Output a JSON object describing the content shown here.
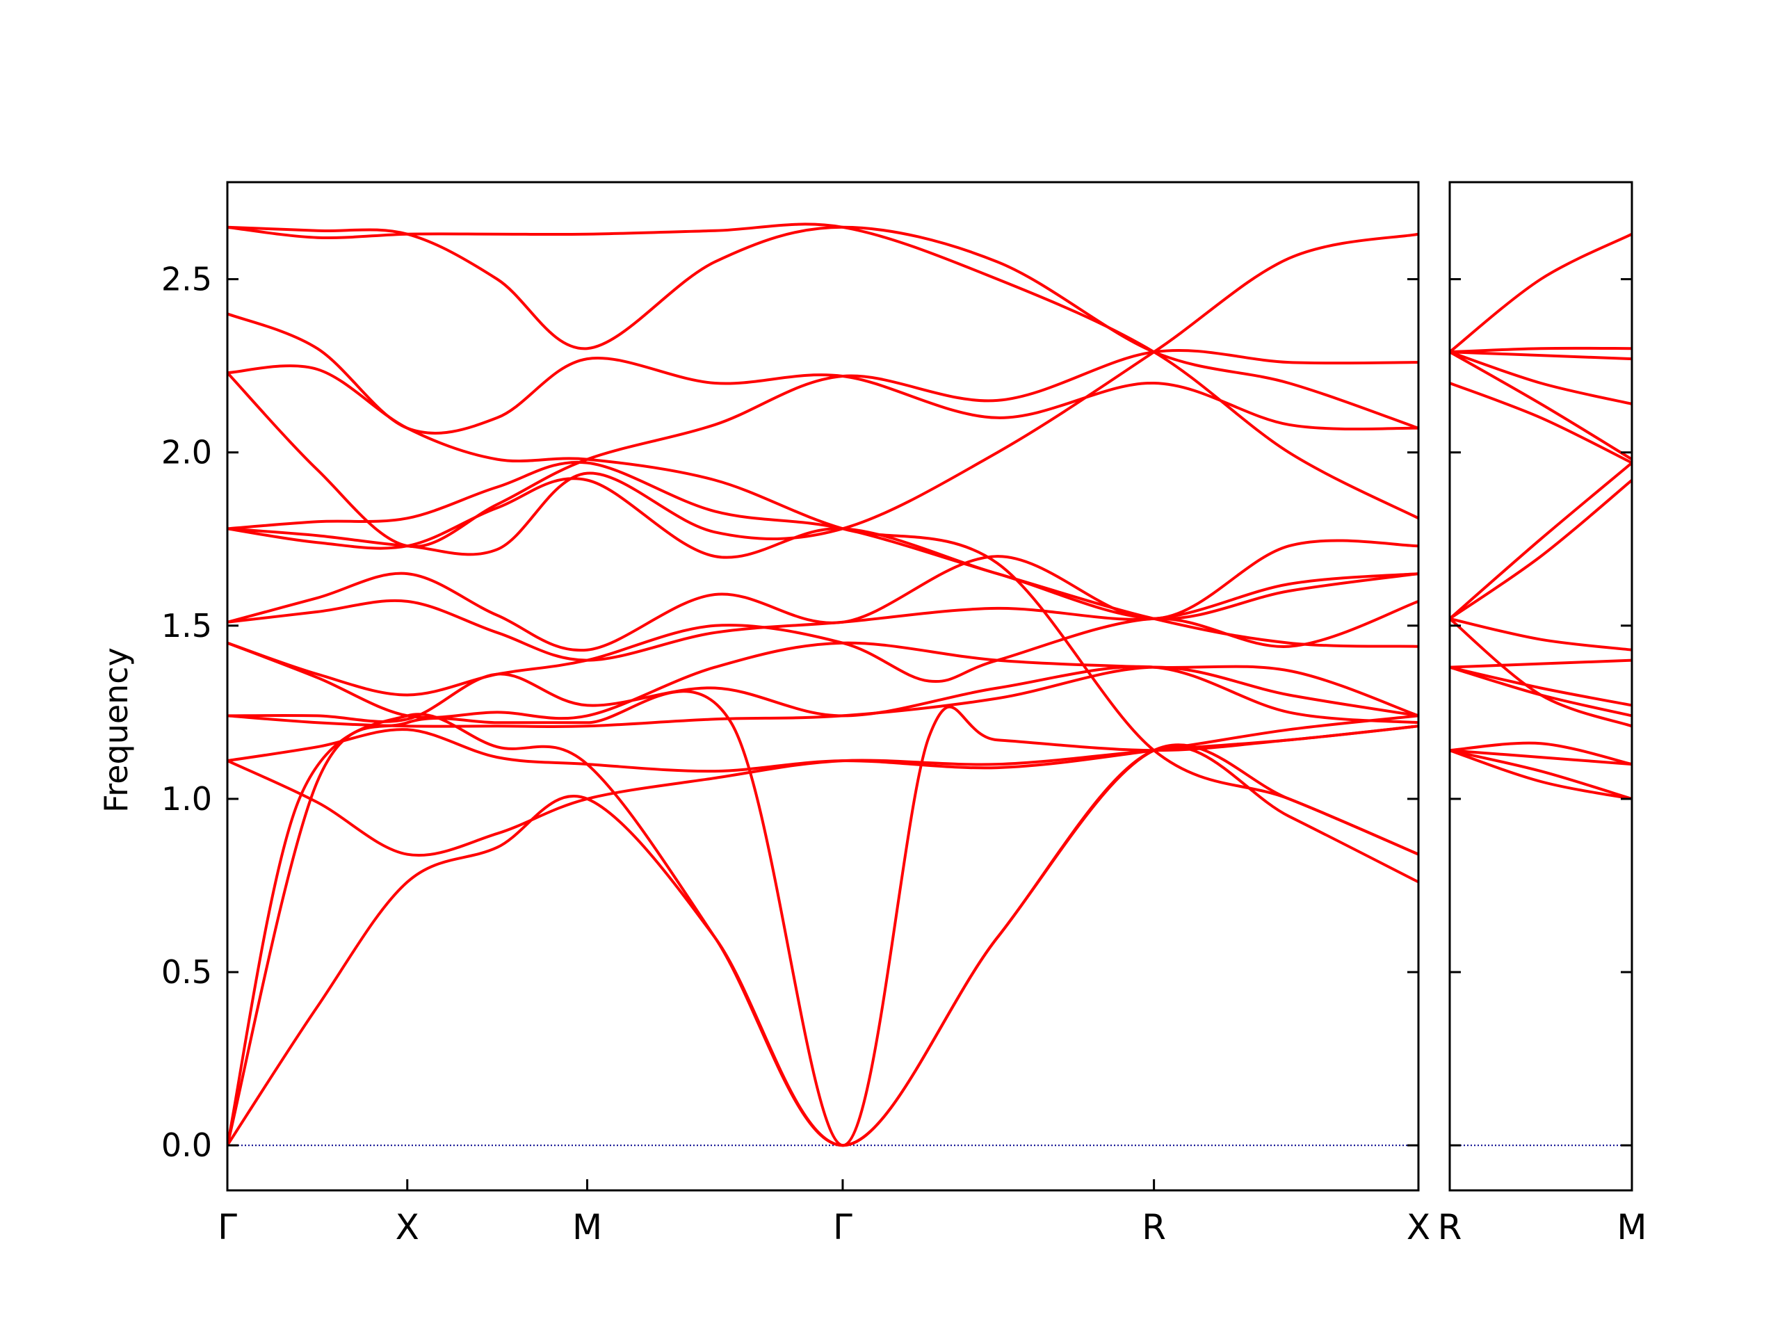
{
  "chart_data": {
    "type": "line",
    "ylabel": "Frequency",
    "ylim": [
      -0.13,
      2.78
    ],
    "yticks": [
      "0.0",
      "0.5",
      "1.0",
      "1.5",
      "2.0",
      "2.5"
    ],
    "ytick_values": [
      0.0,
      0.5,
      1.0,
      1.5,
      2.0,
      2.5
    ],
    "line_color": "#ff0000",
    "zero_line_color": "#00008b",
    "panels": [
      {
        "xlim": [
          0,
          6.62
        ],
        "labels": [
          {
            "x": 0,
            "text": "Γ"
          },
          {
            "x": 1.0,
            "text": "X"
          },
          {
            "x": 2.0,
            "text": "M"
          },
          {
            "x": 3.42,
            "text": "Γ"
          },
          {
            "x": 5.15,
            "text": "R"
          },
          {
            "x": 6.62,
            "text": "X"
          }
        ],
        "bands": [
          {
            "x": [
              0,
              0.5,
              1.0,
              1.5,
              2.0,
              2.71,
              3.42,
              4.28,
              5.15,
              5.9,
              6.62
            ],
            "y": [
              0.0,
              0.4,
              0.76,
              0.86,
              1.0,
              0.6,
              0.0,
              0.6,
              1.14,
              0.95,
              0.76
            ]
          },
          {
            "x": [
              0,
              0.4,
              1.0,
              1.5,
              2.0,
              2.71,
              3.42,
              4.28,
              5.15,
              5.9,
              6.62
            ],
            "y": [
              0.0,
              1.0,
              1.24,
              1.15,
              1.1,
              0.6,
              0.0,
              0.6,
              1.14,
              1.0,
              0.84
            ]
          },
          {
            "x": [
              0,
              0.5,
              1.0,
              1.5,
              2.0,
              2.8,
              3.42,
              3.9,
              4.28,
              5.15,
              5.9,
              6.62
            ],
            "y": [
              0.0,
              1.05,
              1.22,
              1.22,
              1.22,
              1.22,
              0.0,
              1.18,
              1.17,
              1.14,
              1.17,
              1.21
            ]
          },
          {
            "x": [
              0,
              0.5,
              1.0,
              1.5,
              2.0,
              2.71,
              3.42,
              4.28,
              5.15,
              5.9,
              6.62
            ],
            "y": [
              1.11,
              0.99,
              0.84,
              0.9,
              1.0,
              1.06,
              1.11,
              1.1,
              1.14,
              1.17,
              1.21
            ]
          },
          {
            "x": [
              0,
              0.5,
              1.0,
              1.5,
              2.0,
              2.71,
              3.42,
              4.28,
              5.15,
              5.9,
              6.62
            ],
            "y": [
              1.11,
              1.15,
              1.2,
              1.12,
              1.1,
              1.08,
              1.11,
              1.09,
              1.14,
              1.2,
              1.24
            ]
          },
          {
            "x": [
              0,
              0.5,
              1.0,
              1.5,
              2.0,
              2.71,
              3.42,
              4.28,
              5.15,
              5.9,
              6.62
            ],
            "y": [
              1.24,
              1.22,
              1.21,
              1.21,
              1.21,
              1.23,
              1.24,
              1.29,
              1.38,
              1.3,
              1.24
            ]
          },
          {
            "x": [
              0,
              0.5,
              1.0,
              1.5,
              2.0,
              2.71,
              3.42,
              4.28,
              5.15,
              5.9,
              6.62
            ],
            "y": [
              1.24,
              1.24,
              1.23,
              1.36,
              1.27,
              1.32,
              1.24,
              1.32,
              1.38,
              1.25,
              1.22
            ]
          },
          {
            "x": [
              0,
              0.5,
              1.0,
              1.5,
              2.0,
              2.71,
              3.42,
              4.28,
              5.15,
              5.9,
              6.62
            ],
            "y": [
              1.45,
              1.35,
              1.24,
              1.25,
              1.24,
              1.38,
              1.45,
              1.4,
              1.38,
              1.37,
              1.24
            ]
          },
          {
            "x": [
              0,
              0.5,
              1.0,
              1.5,
              2.0,
              2.71,
              3.42,
              3.9,
              4.28,
              5.15,
              5.9,
              6.62
            ],
            "y": [
              1.45,
              1.36,
              1.3,
              1.36,
              1.4,
              1.5,
              1.45,
              1.34,
              1.4,
              1.52,
              1.44,
              1.57
            ]
          },
          {
            "x": [
              0,
              0.5,
              1.0,
              1.5,
              2.0,
              2.71,
              3.42,
              4.28,
              5.15,
              5.9,
              6.62
            ],
            "y": [
              1.51,
              1.54,
              1.57,
              1.48,
              1.4,
              1.48,
              1.51,
              1.55,
              1.52,
              1.62,
              1.65
            ]
          },
          {
            "x": [
              0,
              0.5,
              1.0,
              1.5,
              2.0,
              2.71,
              3.42,
              4.28,
              5.15,
              5.9,
              6.62
            ],
            "y": [
              1.51,
              1.58,
              1.65,
              1.53,
              1.43,
              1.59,
              1.51,
              1.7,
              1.52,
              1.73,
              1.73
            ]
          },
          {
            "x": [
              0,
              0.5,
              1.0,
              1.5,
              2.0,
              2.71,
              3.42,
              4.28,
              5.15,
              5.9,
              6.62
            ],
            "y": [
              1.78,
              1.74,
              1.73,
              1.84,
              1.92,
              1.7,
              1.78,
              1.65,
              1.52,
              1.45,
              1.44
            ]
          },
          {
            "x": [
              0,
              0.5,
              1.0,
              1.5,
              2.0,
              2.71,
              3.42,
              4.28,
              5.15,
              5.9,
              6.62
            ],
            "y": [
              1.78,
              1.76,
              1.73,
              1.72,
              1.94,
              1.77,
              1.78,
              2.0,
              2.29,
              2.56,
              2.63
            ]
          },
          {
            "x": [
              0,
              0.5,
              1.0,
              1.5,
              2.0,
              2.71,
              3.42,
              4.28,
              5.15,
              5.9,
              6.62
            ],
            "y": [
              1.78,
              1.8,
              1.81,
              1.9,
              1.97,
              1.83,
              1.78,
              1.65,
              1.52,
              1.6,
              1.65
            ]
          },
          {
            "x": [
              0,
              0.5,
              1.0,
              1.5,
              2.0,
              2.71,
              3.42,
              4.28,
              5.15,
              5.9,
              6.62
            ],
            "y": [
              2.23,
              2.24,
              2.07,
              1.98,
              1.98,
              1.92,
              1.78,
              1.68,
              1.14,
              1.0,
              0.84
            ]
          },
          {
            "x": [
              0,
              0.5,
              1.0,
              1.5,
              2.0,
              2.71,
              3.42,
              4.28,
              5.15,
              5.9,
              6.62
            ],
            "y": [
              2.23,
              1.95,
              1.73,
              1.85,
              1.98,
              2.08,
              2.22,
              2.15,
              2.29,
              2.26,
              2.26
            ]
          },
          {
            "x": [
              0,
              0.5,
              1.0,
              1.5,
              2.0,
              2.71,
              3.42,
              4.28,
              5.15,
              5.9,
              6.62
            ],
            "y": [
              2.4,
              2.3,
              2.07,
              2.1,
              2.27,
              2.2,
              2.22,
              2.1,
              2.2,
              2.08,
              2.07
            ]
          },
          {
            "x": [
              0,
              0.5,
              1.0,
              1.5,
              2.0,
              2.71,
              3.42,
              4.28,
              5.15,
              5.9,
              6.62
            ],
            "y": [
              2.65,
              2.62,
              2.63,
              2.63,
              2.63,
              2.64,
              2.65,
              2.5,
              2.29,
              2.0,
              1.81
            ]
          },
          {
            "x": [
              0,
              0.5,
              1.0,
              1.5,
              2.0,
              2.71,
              3.42,
              4.28,
              5.15,
              5.9,
              6.62
            ],
            "y": [
              2.65,
              2.64,
              2.63,
              2.5,
              2.3,
              2.55,
              2.65,
              2.55,
              2.29,
              2.2,
              2.07
            ]
          }
        ]
      },
      {
        "xlim": [
          0,
          1.0
        ],
        "labels": [
          {
            "x": 0,
            "text": "R"
          },
          {
            "x": 1.0,
            "text": "M"
          }
        ],
        "bands": [
          {
            "x": [
              0,
              0.5,
              1.0
            ],
            "y": [
              1.14,
              1.05,
              1.0
            ]
          },
          {
            "x": [
              0,
              0.5,
              1.0
            ],
            "y": [
              1.14,
              1.08,
              1.0
            ]
          },
          {
            "x": [
              0,
              0.5,
              1.0
            ],
            "y": [
              1.14,
              1.12,
              1.1
            ]
          },
          {
            "x": [
              0,
              0.5,
              1.0
            ],
            "y": [
              1.14,
              1.16,
              1.1
            ]
          },
          {
            "x": [
              0,
              0.5,
              1.0
            ],
            "y": [
              1.38,
              1.39,
              1.4
            ]
          },
          {
            "x": [
              0,
              0.5,
              1.0
            ],
            "y": [
              1.38,
              1.3,
              1.24
            ]
          },
          {
            "x": [
              0,
              0.5,
              1.0
            ],
            "y": [
              1.38,
              1.32,
              1.27
            ]
          },
          {
            "x": [
              0,
              0.5,
              1.0
            ],
            "y": [
              1.52,
              1.3,
              1.21
            ]
          },
          {
            "x": [
              0,
              0.5,
              1.0
            ],
            "y": [
              1.52,
              1.46,
              1.43
            ]
          },
          {
            "x": [
              0,
              0.5,
              1.0
            ],
            "y": [
              1.52,
              1.7,
              1.92
            ]
          },
          {
            "x": [
              0,
              0.5,
              1.0
            ],
            "y": [
              1.52,
              1.75,
              1.97
            ]
          },
          {
            "x": [
              0,
              0.5,
              1.0
            ],
            "y": [
              2.2,
              2.1,
              1.97
            ]
          },
          {
            "x": [
              0,
              0.5,
              1.0
            ],
            "y": [
              2.29,
              2.14,
              1.98
            ]
          },
          {
            "x": [
              0,
              0.5,
              1.0
            ],
            "y": [
              2.29,
              2.2,
              2.14
            ]
          },
          {
            "x": [
              0,
              0.5,
              1.0
            ],
            "y": [
              2.29,
              2.28,
              2.27
            ]
          },
          {
            "x": [
              0,
              0.5,
              1.0
            ],
            "y": [
              2.29,
              2.3,
              2.3
            ]
          },
          {
            "x": [
              0,
              0.5,
              1.0
            ],
            "y": [
              2.29,
              2.5,
              2.63
            ]
          }
        ]
      }
    ]
  }
}
